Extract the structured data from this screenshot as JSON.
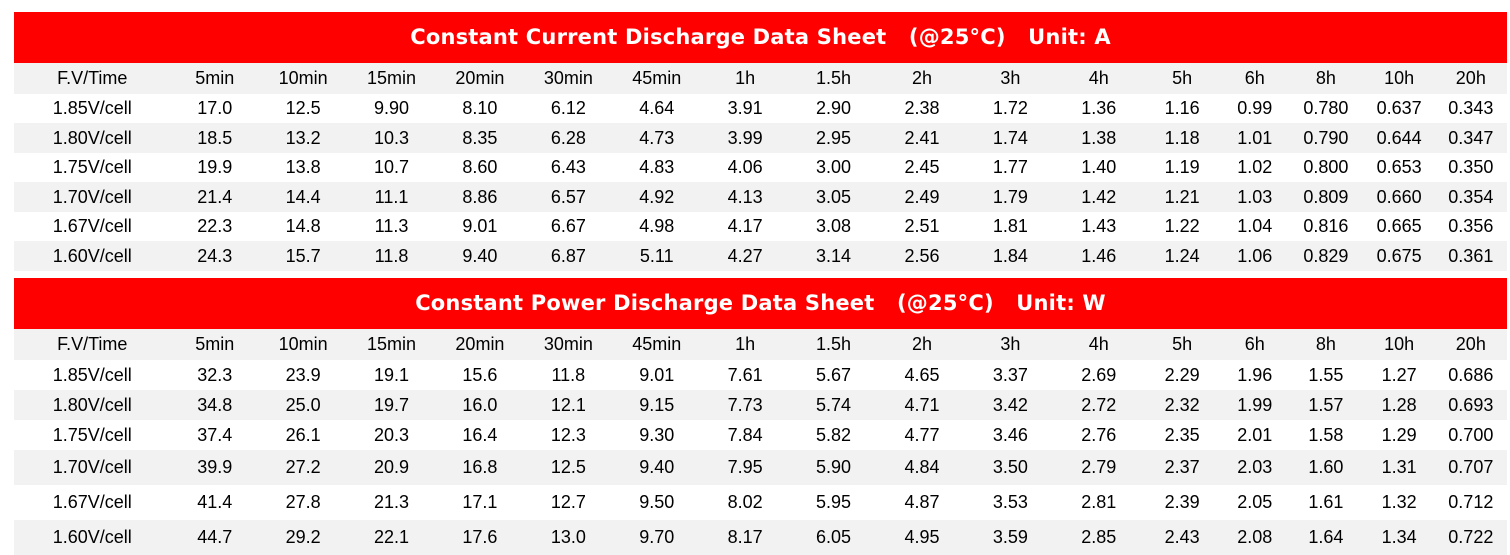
{
  "columns": [
    "F.V/Time",
    "5min",
    "10min",
    "15min",
    "20min",
    "30min",
    "45min",
    "1h",
    "1.5h",
    "2h",
    "3h",
    "4h",
    "5h",
    "6h",
    "8h",
    "10h",
    "20h"
  ],
  "current": {
    "title": "Constant Current Discharge Data Sheet   (@25°C)   Unit: A",
    "rows": [
      [
        "1.85V/cell",
        "17.0",
        "12.5",
        "9.90",
        "8.10",
        "6.12",
        "4.64",
        "3.91",
        "2.90",
        "2.38",
        "1.72",
        "1.36",
        "1.16",
        "0.99",
        "0.780",
        "0.637",
        "0.343"
      ],
      [
        "1.80V/cell",
        "18.5",
        "13.2",
        "10.3",
        "8.35",
        "6.28",
        "4.73",
        "3.99",
        "2.95",
        "2.41",
        "1.74",
        "1.38",
        "1.18",
        "1.01",
        "0.790",
        "0.644",
        "0.347"
      ],
      [
        "1.75V/cell",
        "19.9",
        "13.8",
        "10.7",
        "8.60",
        "6.43",
        "4.83",
        "4.06",
        "3.00",
        "2.45",
        "1.77",
        "1.40",
        "1.19",
        "1.02",
        "0.800",
        "0.653",
        "0.350"
      ],
      [
        "1.70V/cell",
        "21.4",
        "14.4",
        "11.1",
        "8.86",
        "6.57",
        "4.92",
        "4.13",
        "3.05",
        "2.49",
        "1.79",
        "1.42",
        "1.21",
        "1.03",
        "0.809",
        "0.660",
        "0.354"
      ],
      [
        "1.67V/cell",
        "22.3",
        "14.8",
        "11.3",
        "9.01",
        "6.67",
        "4.98",
        "4.17",
        "3.08",
        "2.51",
        "1.81",
        "1.43",
        "1.22",
        "1.04",
        "0.816",
        "0.665",
        "0.356"
      ],
      [
        "1.60V/cell",
        "24.3",
        "15.7",
        "11.8",
        "9.40",
        "6.87",
        "5.11",
        "4.27",
        "3.14",
        "2.56",
        "1.84",
        "1.46",
        "1.24",
        "1.06",
        "0.829",
        "0.675",
        "0.361"
      ]
    ]
  },
  "power": {
    "title": "Constant Power Discharge Data Sheet   (@25°C)   Unit: W",
    "rows": [
      [
        "1.85V/cell",
        "32.3",
        "23.9",
        "19.1",
        "15.6",
        "11.8",
        "9.01",
        "7.61",
        "5.67",
        "4.65",
        "3.37",
        "2.69",
        "2.29",
        "1.96",
        "1.55",
        "1.27",
        "0.686"
      ],
      [
        "1.80V/cell",
        "34.8",
        "25.0",
        "19.7",
        "16.0",
        "12.1",
        "9.15",
        "7.73",
        "5.74",
        "4.71",
        "3.42",
        "2.72",
        "2.32",
        "1.99",
        "1.57",
        "1.28",
        "0.693"
      ],
      [
        "1.75V/cell",
        "37.4",
        "26.1",
        "20.3",
        "16.4",
        "12.3",
        "9.30",
        "7.84",
        "5.82",
        "4.77",
        "3.46",
        "2.76",
        "2.35",
        "2.01",
        "1.58",
        "1.29",
        "0.700"
      ],
      [
        "1.70V/cell",
        "39.9",
        "27.2",
        "20.9",
        "16.8",
        "12.5",
        "9.40",
        "7.95",
        "5.90",
        "4.84",
        "3.50",
        "2.79",
        "2.37",
        "2.03",
        "1.60",
        "1.31",
        "0.707"
      ],
      [
        "1.67V/cell",
        "41.4",
        "27.8",
        "21.3",
        "17.1",
        "12.7",
        "9.50",
        "8.02",
        "5.95",
        "4.87",
        "3.53",
        "2.81",
        "2.39",
        "2.05",
        "1.61",
        "1.32",
        "0.712"
      ],
      [
        "1.60V/cell",
        "44.7",
        "29.2",
        "22.1",
        "17.6",
        "13.0",
        "9.70",
        "8.17",
        "6.05",
        "4.95",
        "3.59",
        "2.85",
        "2.43",
        "2.08",
        "1.64",
        "1.34",
        "0.722"
      ]
    ]
  },
  "colors": {
    "banner": "#ff0000",
    "stripe": "#f2f2f2"
  }
}
